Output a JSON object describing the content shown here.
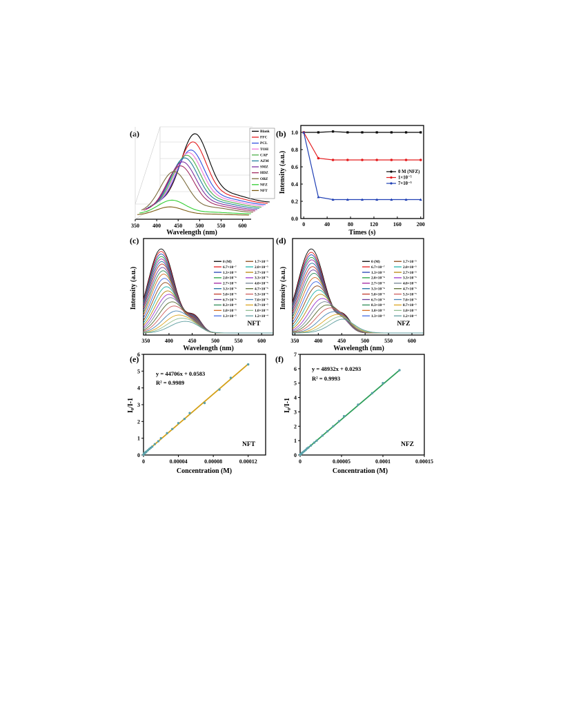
{
  "panels": {
    "a": {
      "label": "(a)",
      "xlabel": "Wavelength (nm)",
      "xticks": [
        "350",
        "400",
        "450",
        "500",
        "550",
        "600"
      ],
      "legend": [
        "Blank",
        "FFC",
        "PCL",
        "TOH",
        "CAP",
        "AZM",
        "SMZ",
        "HDZ",
        "OBZ",
        "NFZ",
        "NFT"
      ],
      "colors": [
        "#000000",
        "#e41a1c",
        "#3050e0",
        "#f078d8",
        "#4daf4a",
        "#207f9c",
        "#7d2fa0",
        "#a02860",
        "#7a6a3a",
        "#32cd32",
        "#7a5a10"
      ]
    },
    "b": {
      "label": "(b)",
      "xlabel": "Times (s)",
      "ylabel": "Intensity (a.u.)",
      "xticks": [
        "0",
        "40",
        "80",
        "120",
        "160",
        "200"
      ],
      "yticks": [
        "0.0",
        "0.2",
        "0.4",
        "0.6",
        "0.8",
        "1.0"
      ],
      "legend": [
        "0 M (NFZ)",
        "1×10⁻⁵",
        "7×10⁻⁵"
      ]
    },
    "c": {
      "label": "(c)",
      "xlabel": "Wavelength (nm)",
      "ylabel": "Intensity (a.u.)",
      "xticks": [
        "350",
        "400",
        "450",
        "500",
        "550",
        "600"
      ],
      "tag": "NFT",
      "legend": [
        "0 (M)",
        "6.7×10⁻⁷",
        "1.3×10⁻⁶",
        "2.0×10⁻⁶",
        "2.7×10⁻⁶",
        "3.3×10⁻⁶",
        "5.0×10⁻⁶",
        "6.7×10⁻⁶",
        "8.3×10⁻⁶",
        "1.0×10⁻⁵",
        "1.3×10⁻⁵",
        "1.7×10⁻⁵",
        "2.0×10⁻⁵",
        "2.7×10⁻⁵",
        "3.3×10⁻⁵",
        "4.0×10⁻⁵",
        "4.7×10⁻⁵",
        "5.3×10⁻⁵",
        "7.0×10⁻⁵",
        "8.7×10⁻⁵",
        "1.0×10⁻⁴",
        "1.2×10⁻⁴"
      ]
    },
    "d": {
      "label": "(d)",
      "xlabel": "Wavelength (nm)",
      "ylabel": "Intensity (a.u.)",
      "xticks": [
        "350",
        "400",
        "450",
        "500",
        "550",
        "600"
      ],
      "tag": "NFZ",
      "legend": [
        "0 (M)",
        "6.7×10⁻⁷",
        "1.3×10⁻⁶",
        "2.0×10⁻⁶",
        "2.7×10⁻⁶",
        "3.3×10⁻⁶",
        "5.0×10⁻⁶",
        "6.7×10⁻⁶",
        "8.3×10⁻⁶",
        "1.0×10⁻⁵",
        "1.3×10⁻⁵",
        "1.7×10⁻⁵",
        "2.0×10⁻⁵",
        "2.7×10⁻⁵",
        "3.3×10⁻⁵",
        "4.0×10⁻⁵",
        "4.7×10⁻⁵",
        "5.3×10⁻⁵",
        "7.0×10⁻⁵",
        "8.7×10⁻⁵",
        "1.0×10⁻⁴",
        "1.2×10⁻⁴"
      ]
    },
    "e": {
      "label": "(e)",
      "xlabel": "Concentration (M)",
      "ylabel": "I₀/I-1",
      "xticks": [
        "0",
        "0.00004",
        "0.00008",
        "0.00012"
      ],
      "yticks": [
        "0",
        "1",
        "2",
        "3",
        "4",
        "5",
        "6"
      ],
      "equation": "y = 44706x + 0.0583",
      "r2": "R² = 0.9989",
      "tag": "NFT"
    },
    "f": {
      "label": "(f)",
      "xlabel": "Concentration (M)",
      "ylabel": "I₀/I-1",
      "xticks": [
        "0",
        "0.00005",
        "0.0001",
        "0.00015"
      ],
      "yticks": [
        "0",
        "1",
        "2",
        "3",
        "4",
        "5",
        "6",
        "7"
      ],
      "equation": "y = 48932x + 0.0293",
      "r2": "R² = 0.9993",
      "tag": "NFZ"
    }
  },
  "series_colors": [
    "#000000",
    "#e41a1c",
    "#1f3fb4",
    "#1e9e3a",
    "#a020a0",
    "#1a6fa0",
    "#c0392b",
    "#6a3d9a",
    "#2e8b57",
    "#d2691e",
    "#4169e1",
    "#8b4513",
    "#20b2aa",
    "#b8860b",
    "#9932cc",
    "#708090",
    "#556b2f",
    "#cd5c5c",
    "#4682b4",
    "#daa520",
    "#8fbc8f",
    "#5f9ea0"
  ],
  "chart_data": [
    {
      "panel": "a",
      "type": "line",
      "xlabel": "Wavelength (nm)",
      "xlim": [
        350,
        620
      ],
      "series_peaks": [
        {
          "name": "Blank",
          "peak_x": 440,
          "peak_rel": 1.0
        },
        {
          "name": "FFC",
          "peak_x": 440,
          "peak_rel": 0.9
        },
        {
          "name": "PCL",
          "peak_x": 440,
          "peak_rel": 0.8
        },
        {
          "name": "TOH",
          "peak_x": 440,
          "peak_rel": 0.78
        },
        {
          "name": "CAP",
          "peak_x": 440,
          "peak_rel": 0.76
        },
        {
          "name": "AZM",
          "peak_x": 440,
          "peak_rel": 0.74
        },
        {
          "name": "SMZ",
          "peak_x": 440,
          "peak_rel": 0.7
        },
        {
          "name": "HDZ",
          "peak_x": 440,
          "peak_rel": 0.66
        },
        {
          "name": "OBZ",
          "peak_x": 430,
          "peak_rel": 0.6
        },
        {
          "name": "NFZ",
          "peak_x": 430,
          "peak_rel": 0.2
        },
        {
          "name": "NFT",
          "peak_x": 430,
          "peak_rel": 0.12
        }
      ]
    },
    {
      "panel": "b",
      "type": "line",
      "xlabel": "Times (s)",
      "ylabel": "Intensity (a.u.)",
      "xlim": [
        -5,
        205
      ],
      "ylim": [
        0,
        1.08
      ],
      "x": [
        0,
        25,
        50,
        75,
        100,
        125,
        150,
        175,
        200
      ],
      "series": [
        {
          "name": "0 M (NFZ)",
          "color": "#000000",
          "values": [
            1.0,
            1.0,
            1.01,
            1.0,
            1.0,
            1.0,
            1.0,
            1.0,
            1.0
          ]
        },
        {
          "name": "1×10⁻⁵",
          "color": "#e41a1c",
          "values": [
            1.0,
            0.7,
            0.68,
            0.68,
            0.68,
            0.68,
            0.68,
            0.68,
            0.68
          ]
        },
        {
          "name": "7×10⁻⁵",
          "color": "#1f3fb4",
          "values": [
            1.0,
            0.25,
            0.22,
            0.22,
            0.22,
            0.22,
            0.22,
            0.22,
            0.22
          ]
        }
      ]
    },
    {
      "panel": "c",
      "type": "line",
      "xlabel": "Wavelength (nm)",
      "ylabel": "Intensity (a.u.)",
      "xlim": [
        345,
        625
      ],
      "peak_x": 383,
      "shift_to": 430,
      "relative_peaks": [
        1.0,
        0.97,
        0.94,
        0.91,
        0.88,
        0.85,
        0.82,
        0.78,
        0.74,
        0.7,
        0.65,
        0.6,
        0.55,
        0.5,
        0.46,
        0.42,
        0.37,
        0.32,
        0.26,
        0.21,
        0.17,
        0.13
      ]
    },
    {
      "panel": "d",
      "type": "line",
      "xlabel": "Wavelength (nm)",
      "ylabel": "Intensity (a.u.)",
      "xlim": [
        345,
        625
      ],
      "peak_x": 385,
      "shift_to": 450,
      "relative_peaks": [
        1.0,
        0.96,
        0.93,
        0.9,
        0.87,
        0.83,
        0.79,
        0.75,
        0.71,
        0.66,
        0.61,
        0.56,
        0.51,
        0.46,
        0.41,
        0.37,
        0.33,
        0.29,
        0.24,
        0.2,
        0.17,
        0.14
      ]
    },
    {
      "panel": "e",
      "type": "scatter",
      "xlabel": "Concentration (M)",
      "ylabel": "I₀/I-1",
      "xlim": [
        0,
        0.00014
      ],
      "ylim": [
        0,
        6
      ],
      "fit": {
        "slope": 44706,
        "intercept": 0.0583,
        "color": "#d4a017"
      },
      "x": [
        0,
        7e-07,
        1.3e-06,
        2e-06,
        2.7e-06,
        3.3e-06,
        5e-06,
        6.7e-06,
        8.3e-06,
        1e-05,
        1.3e-05,
        1.7e-05,
        2e-05,
        2.7e-05,
        3.3e-05,
        4e-05,
        4.7e-05,
        5.3e-05,
        7e-05,
        8.7e-05,
        0.0001,
        0.00012
      ],
      "y": [
        0.02,
        0.09,
        0.12,
        0.14,
        0.17,
        0.2,
        0.28,
        0.36,
        0.43,
        0.5,
        0.65,
        0.82,
        1.0,
        1.3,
        1.55,
        1.9,
        2.15,
        2.5,
        3.1,
        3.9,
        4.6,
        5.4
      ]
    },
    {
      "panel": "f",
      "type": "scatter",
      "xlabel": "Concentration (M)",
      "ylabel": "I₀/I-1",
      "xlim": [
        0,
        0.00015
      ],
      "ylim": [
        0,
        7
      ],
      "fit": {
        "slope": 48932,
        "intercept": 0.0293,
        "color": "#2e9e5b"
      },
      "x": [
        0,
        7e-07,
        1.3e-06,
        2e-06,
        2.7e-06,
        3.3e-06,
        5e-06,
        6.7e-06,
        8.3e-06,
        1e-05,
        1.3e-05,
        1.7e-05,
        2e-05,
        2.7e-05,
        3.3e-05,
        4e-05,
        4.7e-05,
        5.3e-05,
        7e-05,
        8.7e-05,
        0.0001,
        0.00012
      ],
      "y": [
        0.03,
        0.06,
        0.08,
        0.13,
        0.16,
        0.19,
        0.27,
        0.35,
        0.45,
        0.52,
        0.66,
        0.86,
        1.0,
        1.35,
        1.65,
        2.0,
        2.35,
        2.7,
        3.5,
        4.3,
        5.0,
        5.9
      ]
    }
  ]
}
